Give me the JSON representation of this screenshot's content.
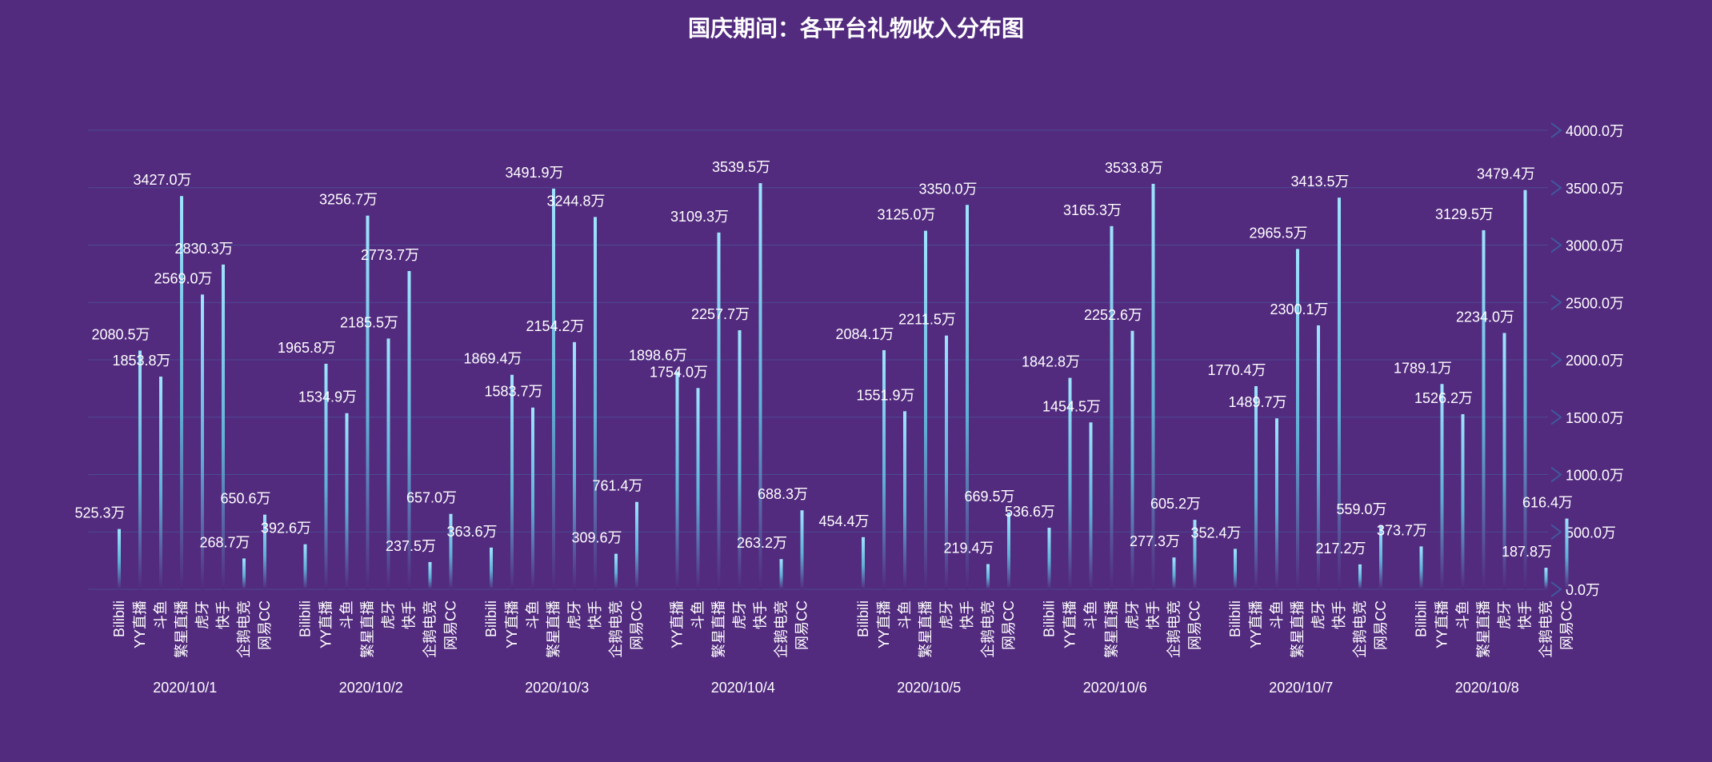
{
  "colors": {
    "background": "#522a7e",
    "bar_top": "#9fe4ff",
    "bar_mid": "#5fb0d6",
    "bar_bottom": "#522a7e",
    "gridline": "#4a5a9c",
    "text": "#ffffff",
    "arrow": "#3f5a9e"
  },
  "chart_data": {
    "type": "bar",
    "title": "国庆期间：各平台礼物收入分布图",
    "ylim": [
      0,
      4000
    ],
    "y_ticks": [
      "0.0万",
      "500.0万",
      "1000.0万",
      "1500.0万",
      "2000.0万",
      "2500.0万",
      "3000.0万",
      "3500.0万",
      "4000.0万"
    ],
    "y_tick_values": [
      0,
      500,
      1000,
      1500,
      2000,
      2500,
      3000,
      3500,
      4000
    ],
    "unit": "万",
    "grid": true,
    "groups": [
      {
        "date": "2020/10/1",
        "platforms": [
          "Bilibili",
          "YY直播",
          "斗鱼",
          "繁星直播",
          "虎牙",
          "快手",
          "企鹅电竞",
          "网易CC"
        ],
        "values": [
          525.3,
          2080.5,
          1853.8,
          3427.0,
          2569.0,
          2830.3,
          268.7,
          650.6
        ],
        "labels": [
          "525.3万",
          "2080.5万",
          "1853.8万",
          "3427.0万",
          "2569.0万",
          "2830.3万",
          "268.7万",
          "650.6万"
        ]
      },
      {
        "date": "2020/10/2",
        "platforms": [
          "Bilibili",
          "YY直播",
          "斗鱼",
          "繁星直播",
          "虎牙",
          "快手",
          "企鹅电竞",
          "网易CC"
        ],
        "values": [
          392.6,
          1965.8,
          1534.9,
          3256.7,
          2185.5,
          2773.7,
          237.5,
          657.0
        ],
        "labels": [
          "392.6万",
          "1965.8万",
          "1534.9万",
          "3256.7万",
          "2185.5万",
          "2773.7万",
          "237.5万",
          "657.0万"
        ]
      },
      {
        "date": "2020/10/3",
        "platforms": [
          "Bilibili",
          "YY直播",
          "斗鱼",
          "繁星直播",
          "虎牙",
          "快手",
          "企鹅电竞",
          "网易CC"
        ],
        "values": [
          363.6,
          1869.4,
          1583.7,
          3491.9,
          2154.2,
          3244.8,
          309.6,
          761.4
        ],
        "labels": [
          "363.6万",
          "1869.4万",
          "1583.7万",
          "3491.9万",
          "2154.2万",
          "3244.8万",
          "309.6万",
          "761.4万"
        ]
      },
      {
        "date": "2020/10/4",
        "platforms": [
          "YY直播",
          "斗鱼",
          "繁星直播",
          "虎牙",
          "快手",
          "企鹅电竞",
          "网易CC"
        ],
        "values": [
          1898.6,
          1754.0,
          3109.3,
          2257.7,
          3539.5,
          263.2,
          688.3
        ],
        "labels": [
          "1898.6万",
          "1754.0万",
          "3109.3万",
          "2257.7万",
          "3539.5万",
          "263.2万",
          "688.3万"
        ]
      },
      {
        "date": "2020/10/5",
        "platforms": [
          "Bilibili",
          "YY直播",
          "斗鱼",
          "繁星直播",
          "虎牙",
          "快手",
          "企鹅电竞",
          "网易CC"
        ],
        "values": [
          454.4,
          2084.1,
          1551.9,
          3125.0,
          2211.5,
          3350.0,
          219.4,
          669.5
        ],
        "labels": [
          "454.4万",
          "2084.1万",
          "1551.9万",
          "3125.0万",
          "2211.5万",
          "3350.0万",
          "219.4万",
          "669.5万"
        ]
      },
      {
        "date": "2020/10/6",
        "platforms": [
          "Bilibili",
          "YY直播",
          "斗鱼",
          "繁星直播",
          "虎牙",
          "快手",
          "企鹅电竞",
          "网易CC"
        ],
        "values": [
          536.6,
          1842.8,
          1454.5,
          3165.3,
          2252.6,
          3533.8,
          277.3,
          605.2
        ],
        "labels": [
          "536.6万",
          "1842.8万",
          "1454.5万",
          "3165.3万",
          "2252.6万",
          "3533.8万",
          "277.3万",
          "605.2万"
        ]
      },
      {
        "date": "2020/10/7",
        "platforms": [
          "Bilibili",
          "YY直播",
          "斗鱼",
          "繁星直播",
          "虎牙",
          "快手",
          "企鹅电竞",
          "网易CC"
        ],
        "values": [
          352.4,
          1770.4,
          1489.7,
          2965.5,
          2300.1,
          3413.5,
          217.2,
          559.0
        ],
        "labels": [
          "352.4万",
          "1770.4万",
          "1489.7万",
          "2965.5万",
          "2300.1万",
          "3413.5万",
          "217.2万",
          "559.0万"
        ]
      },
      {
        "date": "2020/10/8",
        "platforms": [
          "Bilibili",
          "YY直播",
          "斗鱼",
          "繁星直播",
          "虎牙",
          "快手",
          "企鹅电竞",
          "网易CC"
        ],
        "values": [
          373.7,
          1789.1,
          1526.2,
          3129.5,
          2234.0,
          3479.4,
          187.8,
          616.4
        ],
        "labels": [
          "373.7万",
          "1789.1万",
          "1526.2万",
          "3129.5万",
          "2234.0万",
          "3479.4万",
          "187.8万",
          "616.4万"
        ]
      }
    ]
  }
}
